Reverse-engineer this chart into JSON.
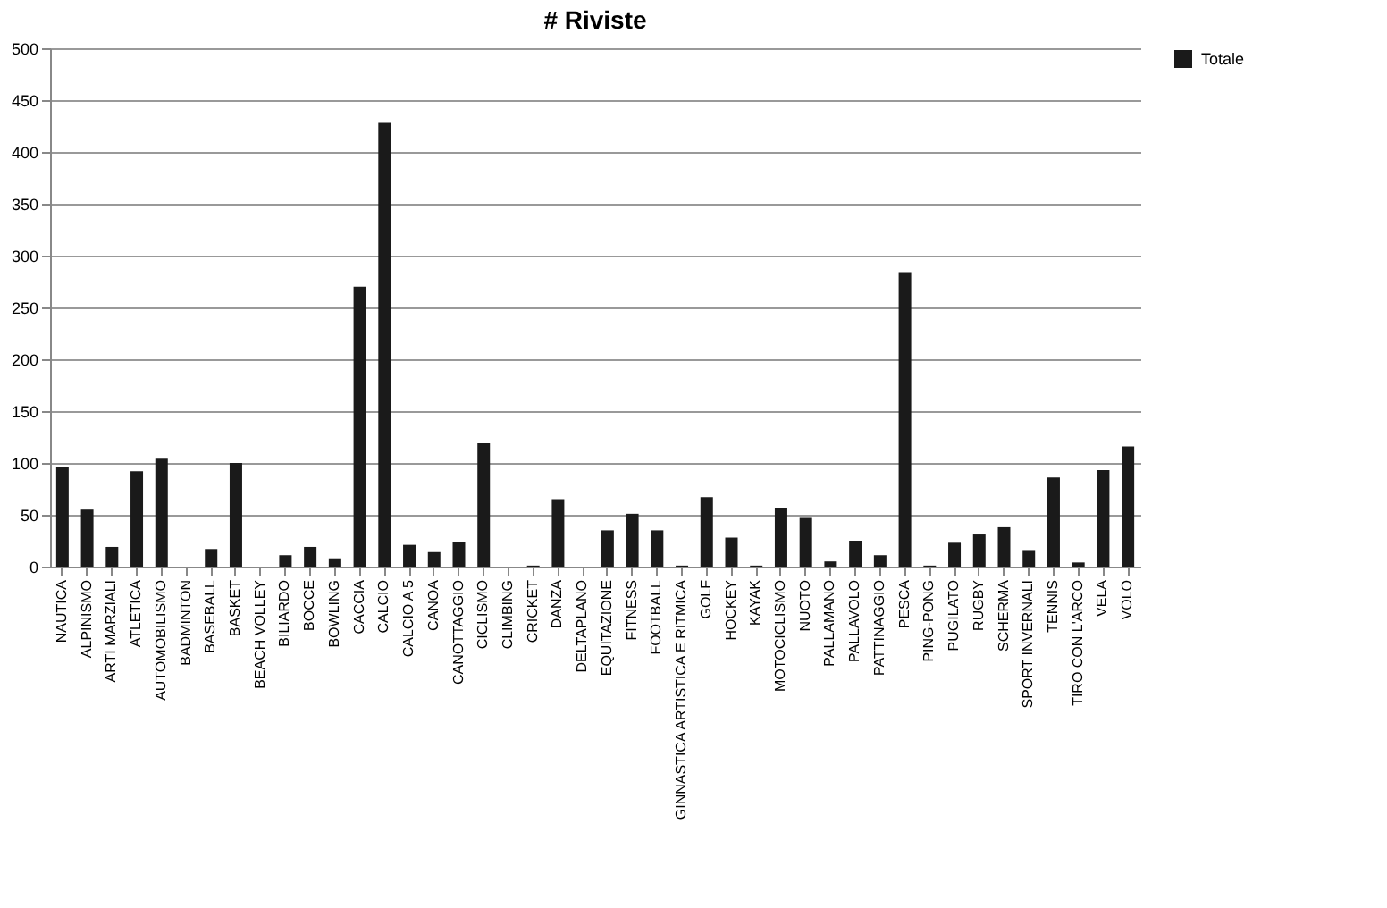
{
  "chart_data": {
    "type": "bar",
    "title": "# Riviste",
    "categories": [
      "NAUTICA",
      "ALPINISMO",
      "ARTI MARZIALI",
      "ATLETICA",
      "AUTOMOBILISMO",
      "BADMINTON",
      "BASEBALL",
      "BASKET",
      "BEACH VOLLEY",
      "BILIARDO",
      "BOCCE",
      "BOWLING",
      "CACCIA",
      "CALCIO",
      "CALCIO A 5",
      "CANOA",
      "CANOTTAGGIO",
      "CICLISMO",
      "CLIMBING",
      "CRICKET",
      "DANZA",
      "DELTAPLANO",
      "EQUITAZIONE",
      "FITNESS",
      "FOOTBALL",
      "GINNASTICA ARTISTICA E RITMICA",
      "GOLF",
      "HOCKEY",
      "KAYAK",
      "MOTOCICLISMO",
      "NUOTO",
      "PALLAMANO",
      "PALLAVOLO",
      "PATTINAGGIO",
      "PESCA",
      "PING-PONG",
      "PUGILATO",
      "RUGBY",
      "SCHERMA",
      "SPORT INVERNALI",
      "TENNIS",
      "TIRO CON L'ARCO",
      "VELA",
      "VOLO"
    ],
    "series": [
      {
        "name": "Totale",
        "color": "#1a1a1a",
        "values": [
          96,
          55,
          19,
          92,
          104,
          0,
          17,
          100,
          0,
          11,
          19,
          8,
          270,
          428,
          21,
          14,
          24,
          119,
          0,
          1,
          65,
          0,
          35,
          51,
          35,
          1,
          67,
          28,
          1,
          57,
          47,
          5,
          25,
          11,
          284,
          1,
          23,
          31,
          38,
          16,
          86,
          4,
          93,
          116
        ]
      }
    ],
    "ylim": [
      0,
      500
    ],
    "yticks": [
      0,
      50,
      100,
      150,
      200,
      250,
      300,
      350,
      400,
      450,
      500
    ],
    "grid": "y",
    "legend": "right"
  }
}
